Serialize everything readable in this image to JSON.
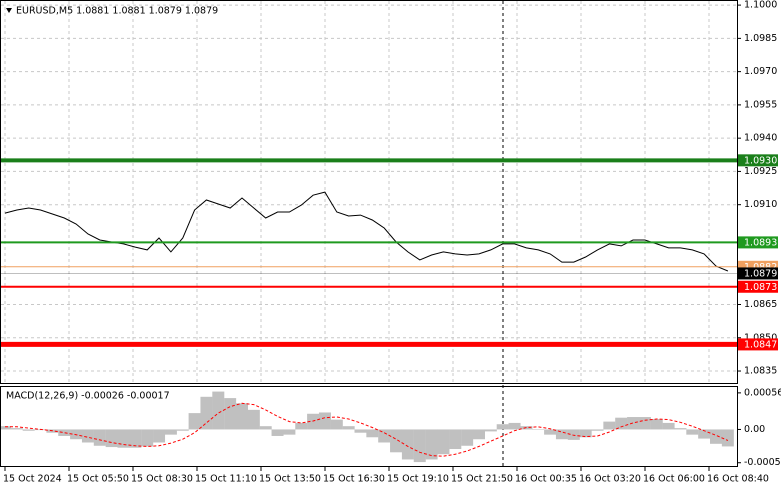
{
  "chart_data": [
    {
      "type": "line",
      "title": "EURUSD,M5  1.0881 1.0881 1.0879 1.0879",
      "ylim": [
        1.08296,
        1.10023
      ],
      "yticks": [
        {
          "value": 1.1,
          "label": "1.1000"
        },
        1.0985,
        {
          "value": 1.097,
          "label": "1.0970"
        },
        1.0955,
        {
          "value": 1.094,
          "label": "1.0940"
        },
        1.0925,
        {
          "value": 1.091,
          "label": "1.0910"
        },
        1.0865,
        {
          "value": 1.085,
          "label": "1.0850"
        },
        1.0835
      ],
      "grid": true,
      "series": [
        {
          "color": "#000000",
          "values": [
            1.09062,
            1.09076,
            1.09085,
            1.09076,
            1.09058,
            1.0904,
            1.09013,
            1.08968,
            1.08941,
            1.08932,
            1.08923,
            1.08909,
            1.08896,
            1.0895,
            1.08887,
            1.0895,
            1.09076,
            1.09121,
            1.09103,
            1.09085,
            1.0913,
            1.09085,
            1.0904,
            1.09067,
            1.09067,
            1.09098,
            1.09143,
            1.09157,
            1.09067,
            1.09049,
            1.09053,
            1.09031,
            1.08995,
            1.08932,
            1.08887,
            1.08851,
            1.08873,
            1.08887,
            1.08878,
            1.08873,
            1.08878,
            1.08896,
            1.08923,
            1.08923,
            1.08905,
            1.08896,
            1.08878,
            1.08841,
            1.08841,
            1.08864,
            1.08896,
            1.08923,
            1.08914,
            1.08941,
            1.08941,
            1.08923,
            1.08905,
            1.08905,
            1.08896,
            1.08878,
            1.08823,
            1.08801
          ]
        }
      ],
      "levels": [
        {
          "value": 1.093,
          "label": "1.0930",
          "color": "#1a7f1a"
        },
        {
          "value": 1.0893,
          "label": "1.0893",
          "color": "#1f9a1f"
        },
        {
          "value": 1.0882,
          "label": "1.0882",
          "color": "#f0a060"
        },
        {
          "value": 1.0879,
          "label": "1.0879",
          "color": "#000000"
        },
        {
          "value": 1.0873,
          "label": "1.0873",
          "color": "#ff0000"
        },
        {
          "value": 1.0847,
          "label": "1.0847",
          "color": "#ff0000"
        }
      ]
    },
    {
      "type": "macd",
      "title": "MACD(12,26,9) -0.00026 -0.00017",
      "ylim": [
        -0.00056,
        0.00065
      ],
      "yticks": [
        0.00056,
        {
          "value": 0,
          "label": "0.00"
        },
        -0.00051
      ],
      "series": [
        {
          "color": "#c0c0c0",
          "values": [
            5e-05,
            2e-05,
            -2e-05,
            -1e-05,
            -5e-05,
            -0.0001,
            -0.00015,
            -0.0002,
            -0.00025,
            -0.00027,
            -0.00028,
            -0.00028,
            -0.00026,
            -0.0002,
            -8e-05,
            -2e-05,
            0.00025,
            0.0005,
            0.00058,
            0.00048,
            0.0004,
            0.0003,
            5e-05,
            -0.0001,
            -8e-05,
            0.0001,
            0.00024,
            0.00026,
            0.00015,
            5e-05,
            -5e-05,
            -0.00012,
            -0.0002,
            -0.00035,
            -0.00046,
            -0.0005,
            -0.00046,
            -0.00038,
            -0.0003,
            -0.00025,
            -0.00015,
            -3e-05,
            8e-05,
            0.0001,
            5e-05,
            0,
            -8e-05,
            -0.00015,
            -0.00016,
            -0.00012,
            -2e-05,
            0.00012,
            0.00018,
            0.00019,
            0.00019,
            0.00016,
            0.0001,
            2e-05,
            -8e-05,
            -0.00014,
            -0.00022,
            -0.00026
          ]
        },
        {
          "color": "#ff0000",
          "values": [
            4e-05,
            4e-05,
            2e-05,
            0,
            -2e-05,
            -5e-05,
            -8e-05,
            -0.00012,
            -0.00016,
            -0.0002,
            -0.00023,
            -0.00025,
            -0.00026,
            -0.00025,
            -0.00021,
            -0.00015,
            -5e-05,
            0.0001,
            0.00025,
            0.00035,
            0.0004,
            0.00038,
            0.0003,
            0.0002,
            0.00012,
            0.0001,
            0.00013,
            0.00018,
            0.00019,
            0.00016,
            0.0001,
            3e-05,
            -5e-05,
            -0.00015,
            -0.00026,
            -0.00035,
            -0.0004,
            -0.00041,
            -0.00038,
            -0.00033,
            -0.00026,
            -0.00018,
            -0.0001,
            -2e-05,
            3e-05,
            4e-05,
            1e-05,
            -4e-05,
            -9e-05,
            -0.00011,
            -0.0001,
            -4e-05,
            4e-05,
            0.0001,
            0.00014,
            0.00016,
            0.00015,
            0.00011,
            5e-05,
            -2e-05,
            -9e-05,
            -0.00017
          ]
        }
      ],
      "xtick_labels": [
        "15 Oct 2024",
        "15 Oct 05:50",
        "15 Oct 08:30",
        "15 Oct 11:10",
        "15 Oct 13:50",
        "15 Oct 16:30",
        "15 Oct 19:10",
        "15 Oct 21:50",
        "16 Oct 00:35",
        "16 Oct 03:20",
        "16 Oct 06:00",
        "16 Oct 08:40"
      ]
    }
  ]
}
